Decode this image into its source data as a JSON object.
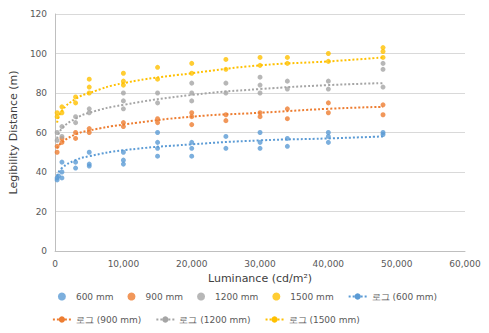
{
  "chart_data": {
    "type": "scatter",
    "x_label": "Luminance (cd/m²)",
    "y_label": "Legibility Distance (m)",
    "xlim": [
      0,
      60000
    ],
    "xticks": [
      0,
      10000,
      20000,
      30000,
      40000,
      50000,
      60000
    ],
    "ylim": [
      0,
      120
    ],
    "yticks": [
      0,
      20,
      40,
      60,
      80,
      100,
      120
    ],
    "grid": true,
    "legend": "bottom",
    "series": [
      {
        "name": "600 mm",
        "type": "scatter",
        "marker": "circle",
        "color": "#5b9bd5",
        "x": [
          300,
          300,
          500,
          1000,
          1000,
          1000,
          3000,
          3000,
          5000,
          5000,
          5000,
          10000,
          10000,
          10000,
          15000,
          15000,
          15000,
          15000,
          20000,
          20000,
          20000,
          25000,
          25000,
          30000,
          30000,
          30000,
          34000,
          34000,
          40000,
          40000,
          40000,
          48000,
          48000
        ],
        "values": [
          36,
          37,
          38,
          37,
          40,
          45,
          42,
          45,
          43,
          44,
          50,
          44,
          46,
          50,
          48,
          52,
          55,
          60,
          48,
          52,
          55,
          52,
          58,
          52,
          55,
          60,
          53,
          57,
          55,
          58,
          60,
          59,
          60
        ]
      },
      {
        "name": "900 mm",
        "type": "scatter",
        "marker": "circle",
        "color": "#ed7d31",
        "x": [
          300,
          300,
          1000,
          1000,
          3000,
          3000,
          5000,
          5000,
          10000,
          10000,
          15000,
          15000,
          20000,
          20000,
          20000,
          25000,
          25000,
          30000,
          30000,
          34000,
          34000,
          40000,
          40000,
          48000,
          48000
        ],
        "values": [
          50,
          53,
          55,
          57,
          57,
          60,
          60,
          62,
          63,
          65,
          65,
          67,
          64,
          68,
          70,
          66,
          69,
          68,
          70,
          67,
          72,
          70,
          75,
          69,
          74
        ]
      },
      {
        "name": "1200 mm",
        "type": "scatter",
        "marker": "circle",
        "color": "#a5a5a5",
        "x": [
          300,
          300,
          1000,
          1000,
          3000,
          3000,
          5000,
          5000,
          10000,
          10000,
          10000,
          15000,
          15000,
          20000,
          20000,
          20000,
          25000,
          25000,
          30000,
          30000,
          30000,
          34000,
          34000,
          40000,
          40000,
          48000,
          48000,
          48000
        ],
        "values": [
          56,
          60,
          58,
          63,
          65,
          68,
          70,
          72,
          72,
          76,
          80,
          75,
          80,
          76,
          80,
          85,
          80,
          85,
          80,
          84,
          88,
          82,
          86,
          82,
          86,
          83,
          92,
          95
        ]
      },
      {
        "name": "1500 mm",
        "type": "scatter",
        "marker": "circle",
        "color": "#ffc000",
        "x": [
          300,
          300,
          1000,
          1000,
          3000,
          3000,
          5000,
          5000,
          5000,
          10000,
          10000,
          10000,
          15000,
          15000,
          20000,
          20000,
          25000,
          25000,
          30000,
          30000,
          34000,
          34000,
          40000,
          40000,
          48000,
          48000,
          48000
        ],
        "values": [
          68,
          70,
          70,
          73,
          75,
          78,
          80,
          83,
          87,
          84,
          86,
          90,
          87,
          93,
          90,
          95,
          92,
          97,
          94,
          98,
          95,
          98,
          96,
          100,
          98,
          101,
          103
        ]
      },
      {
        "name": "로그 (600 mm)",
        "type": "line",
        "line_style": "dotted",
        "color": "#5b9bd5",
        "x": [
          300,
          1000,
          3000,
          5000,
          10000,
          20000,
          30000,
          40000,
          48000
        ],
        "values": [
          38,
          42,
          46,
          48,
          51,
          54,
          56,
          57,
          58
        ]
      },
      {
        "name": "로그 (900 mm)",
        "type": "line",
        "line_style": "dotted",
        "color": "#ed7d31",
        "x": [
          300,
          1000,
          3000,
          5000,
          10000,
          20000,
          30000,
          40000,
          48000
        ],
        "values": [
          52,
          55,
          59,
          61,
          64,
          68,
          70,
          72,
          73
        ]
      },
      {
        "name": "로그 (1200 mm)",
        "type": "line",
        "line_style": "dotted",
        "color": "#a5a5a5",
        "x": [
          300,
          1000,
          3000,
          5000,
          10000,
          20000,
          30000,
          40000,
          48000
        ],
        "values": [
          57,
          62,
          67,
          70,
          74,
          79,
          82,
          84,
          85
        ]
      },
      {
        "name": "로그 (1500 mm)",
        "type": "line",
        "line_style": "dotted",
        "color": "#ffc000",
        "x": [
          300,
          1000,
          3000,
          5000,
          10000,
          20000,
          30000,
          40000,
          48000
        ],
        "values": [
          65,
          71,
          77,
          80,
          85,
          90,
          94,
          96,
          98
        ]
      }
    ]
  }
}
